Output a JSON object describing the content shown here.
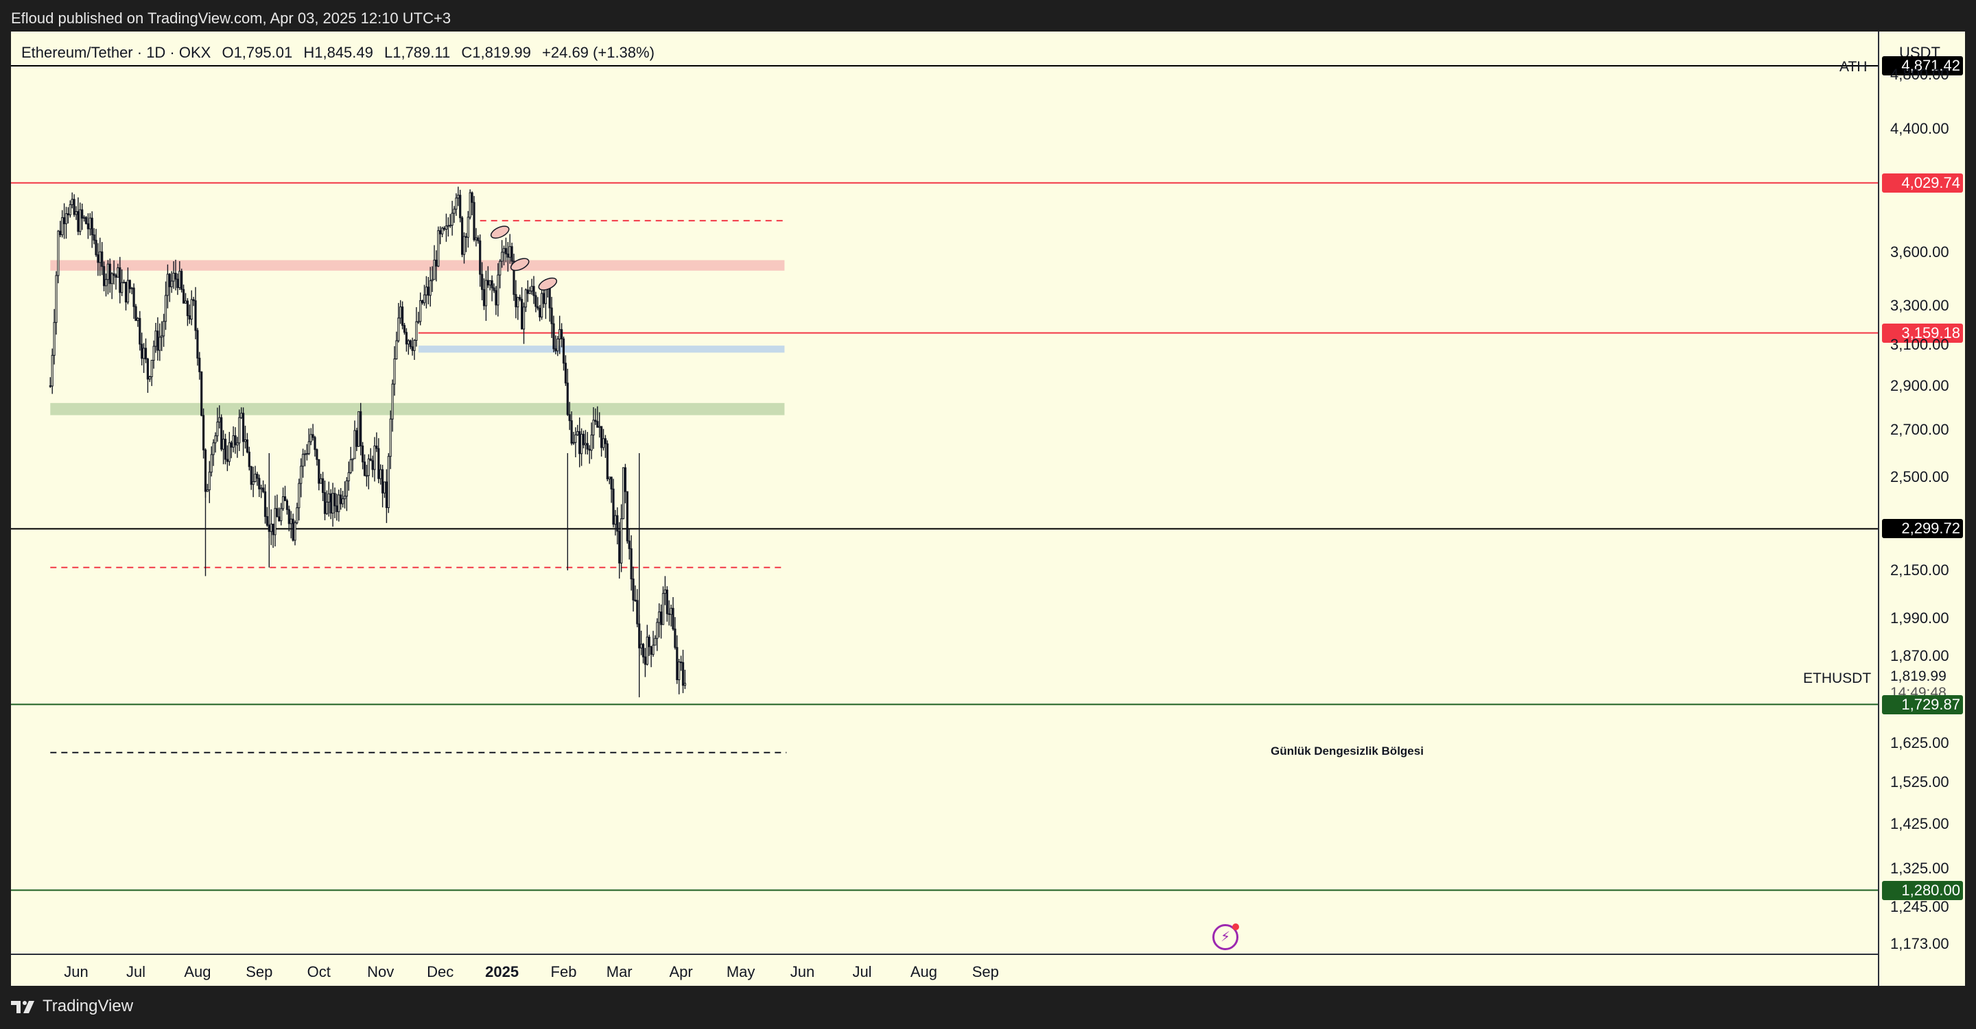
{
  "header": {
    "published": "Efloud published on TradingView.com, Apr 03, 2025 12:10 UTC+3"
  },
  "legend": {
    "symbol": "Ethereum/Tether · 1D · OKX",
    "open": "O1,795.01",
    "high": "H1,845.49",
    "low": "L1,789.11",
    "close": "C1,819.99",
    "change": "+24.69 (+1.38%)"
  },
  "axis": {
    "unit": "USDT"
  },
  "labels": {
    "ath": "ATH",
    "symbol_tag": "ETHUSDT",
    "current_price": "1,819.99",
    "countdown": "14:49:48",
    "zone_text": "Günlük Dengesizlik Bölgesi"
  },
  "footer": {
    "brand": "TradingView"
  },
  "colors": {
    "background": "#fdfde3",
    "candle": "#131722",
    "red_level": "#f23645",
    "green_level": "#1b5e20",
    "black_level": "#000000",
    "supply_zone": "#f7c8c0",
    "demand_zone": "#c9dcb3",
    "blue_zone": "#c4d9ea"
  },
  "chart_data": {
    "type": "candlestick",
    "title": "Ethereum/Tether · 1D · OKX",
    "ylabel": "USDT",
    "y_scale": "log",
    "ylim": [
      1155,
      5150
    ],
    "x_ticks": [
      {
        "label": "Jun",
        "date": "2024-06-01"
      },
      {
        "label": "Jul",
        "date": "2024-07-01"
      },
      {
        "label": "Aug",
        "date": "2024-08-01"
      },
      {
        "label": "Sep",
        "date": "2024-09-01"
      },
      {
        "label": "Oct",
        "date": "2024-10-01"
      },
      {
        "label": "Nov",
        "date": "2024-11-01"
      },
      {
        "label": "Dec",
        "date": "2024-12-01"
      },
      {
        "label": "2025",
        "date": "2025-01-01",
        "bold": true
      },
      {
        "label": "Feb",
        "date": "2025-02-01"
      },
      {
        "label": "Mar",
        "date": "2025-03-01"
      },
      {
        "label": "Apr",
        "date": "2025-04-01"
      },
      {
        "label": "May",
        "date": "2025-05-01"
      },
      {
        "label": "Jun",
        "date": "2025-06-01"
      },
      {
        "label": "Jul",
        "date": "2025-07-01"
      },
      {
        "label": "Aug",
        "date": "2025-08-01"
      },
      {
        "label": "Sep",
        "date": "2025-09-01"
      }
    ],
    "y_ticks": [
      4800,
      4400,
      3600,
      3300,
      3100,
      2900,
      2700,
      2500,
      2150,
      1990,
      1870,
      1625,
      1525,
      1425,
      1325,
      1245,
      1173
    ],
    "y_tick_labels": [
      "4,800.00",
      "4,400.00",
      "3,600.00",
      "3,300.00",
      "3,100.00",
      "2,900.00",
      "2,700.00",
      "2,500.00",
      "2,150.00",
      "1,990.00",
      "1,870.00",
      "1,625.00",
      "1,525.00",
      "1,425.00",
      "1,325.00",
      "1,245.00",
      "1,173.00"
    ],
    "price_levels": [
      {
        "value": 4871.42,
        "label": "4,871.42",
        "color": "#000000",
        "style": "solid"
      },
      {
        "value": 4029.74,
        "label": "4,029.74",
        "color": "#f23645",
        "style": "solid"
      },
      {
        "value": 3159.18,
        "label": "3,159.18",
        "color": "#f23645",
        "style": "solid",
        "start_date": "2024-11-20"
      },
      {
        "value": 2299.72,
        "label": "2,299.72",
        "color": "#000000",
        "style": "solid"
      },
      {
        "value": 1729.87,
        "label": "1,729.87",
        "color": "#1b5e20",
        "style": "solid"
      },
      {
        "value": 1280.0,
        "label": "1,280.00",
        "color": "#1b5e20",
        "style": "solid"
      }
    ],
    "dashed_levels": [
      {
        "value": 3790,
        "color": "#f23645",
        "start_date": "2024-12-21",
        "end_date": "2025-05-23"
      },
      {
        "value": 2160,
        "color": "#f23645",
        "start_date": "2024-05-19",
        "end_date": "2025-05-23"
      },
      {
        "value": 1600,
        "color": "#131722",
        "start_date": "2024-05-19",
        "end_date": "2025-05-24"
      }
    ],
    "zones": [
      {
        "low": 3495,
        "high": 3555,
        "color": "#f7c8c0",
        "start_date": "2024-05-19",
        "end_date": "2025-05-23"
      },
      {
        "low": 3060,
        "high": 3095,
        "color": "#c4d9ea",
        "start_date": "2024-11-20",
        "end_date": "2025-05-23"
      },
      {
        "low": 2765,
        "high": 2820,
        "color": "#c9dcb3",
        "start_date": "2024-05-19",
        "end_date": "2025-05-23"
      }
    ],
    "markers": [
      {
        "date": "2024-12-31",
        "value": 3720
      },
      {
        "date": "2025-01-10",
        "value": 3530
      },
      {
        "date": "2025-01-24",
        "value": 3420
      }
    ],
    "series_path": [
      [
        "2024-05-19",
        2900
      ],
      [
        "2024-05-23",
        3700
      ],
      [
        "2024-05-27",
        3900
      ],
      [
        "2024-06-01",
        3800
      ],
      [
        "2024-06-06",
        3780
      ],
      [
        "2024-06-10",
        3680
      ],
      [
        "2024-06-14",
        3480
      ],
      [
        "2024-06-18",
        3500
      ],
      [
        "2024-06-22",
        3450
      ],
      [
        "2024-06-25",
        3380
      ],
      [
        "2024-06-29",
        3400
      ],
      [
        "2024-07-04",
        3100
      ],
      [
        "2024-07-07",
        2950
      ],
      [
        "2024-07-10",
        3100
      ],
      [
        "2024-07-14",
        3150
      ],
      [
        "2024-07-17",
        3400
      ],
      [
        "2024-07-22",
        3470
      ],
      [
        "2024-07-26",
        3260
      ],
      [
        "2024-07-30",
        3280
      ],
      [
        "2024-08-02",
        3000
      ],
      [
        "2024-08-05",
        2400
      ],
      [
        "2024-08-08",
        2650
      ],
      [
        "2024-08-12",
        2700
      ],
      [
        "2024-08-15",
        2600
      ],
      [
        "2024-08-19",
        2620
      ],
      [
        "2024-08-23",
        2760
      ],
      [
        "2024-08-27",
        2500
      ],
      [
        "2024-08-31",
        2500
      ],
      [
        "2024-09-04",
        2400
      ],
      [
        "2024-09-07",
        2300
      ],
      [
        "2024-09-11",
        2350
      ],
      [
        "2024-09-15",
        2400
      ],
      [
        "2024-09-18",
        2300
      ],
      [
        "2024-09-22",
        2550
      ],
      [
        "2024-09-27",
        2680
      ],
      [
        "2024-10-01",
        2500
      ],
      [
        "2024-10-05",
        2380
      ],
      [
        "2024-10-10",
        2400
      ],
      [
        "2024-10-14",
        2480
      ],
      [
        "2024-10-18",
        2620
      ],
      [
        "2024-10-21",
        2720
      ],
      [
        "2024-10-25",
        2500
      ],
      [
        "2024-10-29",
        2600
      ],
      [
        "2024-11-04",
        2400
      ],
      [
        "2024-11-07",
        2900
      ],
      [
        "2024-11-11",
        3300
      ],
      [
        "2024-11-14",
        3150
      ],
      [
        "2024-11-18",
        3120
      ],
      [
        "2024-11-22",
        3320
      ],
      [
        "2024-11-26",
        3400
      ],
      [
        "2024-11-30",
        3650
      ],
      [
        "2024-12-04",
        3700
      ],
      [
        "2024-12-07",
        3900
      ],
      [
        "2024-12-09",
        4000
      ],
      [
        "2024-12-12",
        3650
      ],
      [
        "2024-12-16",
        3900
      ],
      [
        "2024-12-20",
        3600
      ],
      [
        "2024-12-22",
        3350
      ],
      [
        "2024-12-26",
        3400
      ],
      [
        "2024-12-29",
        3360
      ],
      [
        "2025-01-01",
        3600
      ],
      [
        "2025-01-05",
        3650
      ],
      [
        "2025-01-08",
        3300
      ],
      [
        "2025-01-11",
        3250
      ],
      [
        "2025-01-14",
        3400
      ],
      [
        "2025-01-17",
        3350
      ],
      [
        "2025-01-21",
        3300
      ],
      [
        "2025-01-24",
        3350
      ],
      [
        "2025-01-27",
        3100
      ],
      [
        "2025-01-31",
        3200
      ],
      [
        "2025-02-03",
        2750
      ],
      [
        "2025-02-07",
        2650
      ],
      [
        "2025-02-11",
        2640
      ],
      [
        "2025-02-15",
        2680
      ],
      [
        "2025-02-19",
        2720
      ],
      [
        "2025-02-24",
        2500
      ],
      [
        "2025-02-27",
        2300
      ],
      [
        "2025-03-01",
        2200
      ],
      [
        "2025-03-03",
        2500
      ],
      [
        "2025-03-06",
        2200
      ],
      [
        "2025-03-10",
        1950
      ],
      [
        "2025-03-13",
        1880
      ],
      [
        "2025-03-17",
        1910
      ],
      [
        "2025-03-20",
        1960
      ],
      [
        "2025-03-24",
        2050
      ],
      [
        "2025-03-27",
        2010
      ],
      [
        "2025-03-30",
        1810
      ],
      [
        "2025-04-01",
        1830
      ],
      [
        "2025-04-02",
        1795
      ],
      [
        "2025-04-03",
        1819.99
      ]
    ]
  }
}
